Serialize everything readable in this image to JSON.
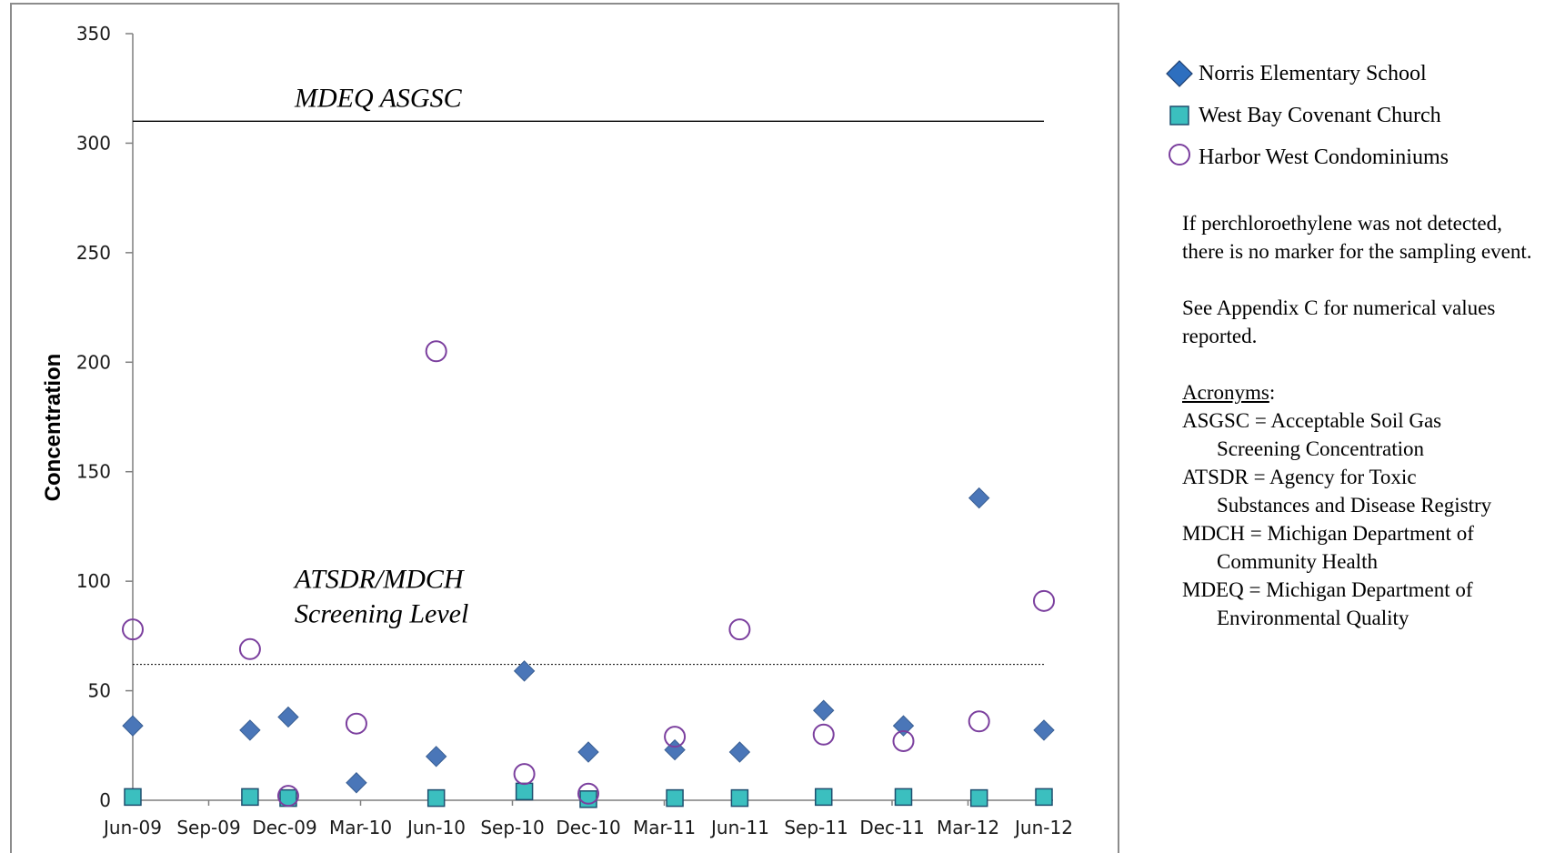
{
  "chart_data": {
    "type": "scatter",
    "ylabel": "Concentration",
    "xlabel": "",
    "ylim": [
      0,
      350
    ],
    "yticks": [
      0,
      50,
      100,
      150,
      200,
      250,
      300,
      350
    ],
    "xticks": [
      "Jun-09",
      "Sep-09",
      "Dec-09",
      "Mar-10",
      "Jun-10",
      "Sep-10",
      "Dec-10",
      "Mar-11",
      "Jun-11",
      "Sep-11",
      "Dec-11",
      "Mar-12",
      "Jun-12"
    ],
    "xlim": [
      "2009-06-01",
      "2012-06-01"
    ],
    "reference_lines": [
      {
        "label": "MDEQ ASGSC",
        "value": 310,
        "style": "solid"
      },
      {
        "label_lines": [
          "ATSDR/MDCH",
          "Screening Level"
        ],
        "value": 62,
        "style": "dotted"
      }
    ],
    "series": [
      {
        "name": "Norris Elementary School",
        "marker": "diamond",
        "color": "#4a76b8",
        "points": [
          {
            "x": "2009-06-01",
            "y": 34
          },
          {
            "x": "2009-10-20",
            "y": 32
          },
          {
            "x": "2009-12-05",
            "y": 38
          },
          {
            "x": "2010-02-25",
            "y": 8
          },
          {
            "x": "2010-06-01",
            "y": 20
          },
          {
            "x": "2010-09-15",
            "y": 59
          },
          {
            "x": "2010-12-01",
            "y": 22
          },
          {
            "x": "2011-03-15",
            "y": 23
          },
          {
            "x": "2011-06-01",
            "y": 22
          },
          {
            "x": "2011-09-10",
            "y": 41
          },
          {
            "x": "2011-12-15",
            "y": 34
          },
          {
            "x": "2012-03-15",
            "y": 138
          },
          {
            "x": "2012-06-01",
            "y": 32
          }
        ]
      },
      {
        "name": "West Bay Covenant Church",
        "marker": "square",
        "color": "#3bbfbf",
        "points": [
          {
            "x": "2009-06-01",
            "y": 1.5
          },
          {
            "x": "2009-10-20",
            "y": 1.5
          },
          {
            "x": "2009-12-05",
            "y": 1
          },
          {
            "x": "2010-06-01",
            "y": 1
          },
          {
            "x": "2010-09-15",
            "y": 4
          },
          {
            "x": "2010-12-01",
            "y": 0.5
          },
          {
            "x": "2011-03-15",
            "y": 1
          },
          {
            "x": "2011-06-01",
            "y": 1
          },
          {
            "x": "2011-09-10",
            "y": 1.5
          },
          {
            "x": "2011-12-15",
            "y": 1.5
          },
          {
            "x": "2012-03-15",
            "y": 1
          },
          {
            "x": "2012-06-01",
            "y": 1.5
          }
        ]
      },
      {
        "name": "Harbor West Condominiums",
        "marker": "circle-open",
        "color": "#7b3f9e",
        "points": [
          {
            "x": "2009-06-01",
            "y": 78
          },
          {
            "x": "2009-10-20",
            "y": 69
          },
          {
            "x": "2009-12-05",
            "y": 2
          },
          {
            "x": "2010-02-25",
            "y": 35
          },
          {
            "x": "2010-06-01",
            "y": 205
          },
          {
            "x": "2010-09-15",
            "y": 12
          },
          {
            "x": "2010-12-01",
            "y": 3
          },
          {
            "x": "2011-03-15",
            "y": 29
          },
          {
            "x": "2011-06-01",
            "y": 78
          },
          {
            "x": "2011-09-10",
            "y": 30
          },
          {
            "x": "2011-12-15",
            "y": 27
          },
          {
            "x": "2012-03-15",
            "y": 36
          },
          {
            "x": "2012-06-01",
            "y": 91
          }
        ]
      }
    ]
  },
  "notes": {
    "not_detected": "If perchloroethylene was not detected, there is no marker for the sampling event.",
    "appendix": "See Appendix C for numerical values reported.",
    "acronyms_title": "Acronyms",
    "acronyms": [
      {
        "first": "ASGSC = Acceptable Soil Gas",
        "cont": "Screening Concentration"
      },
      {
        "first": "ATSDR = Agency for Toxic",
        "cont": "Substances and Disease Registry"
      },
      {
        "first": "MDCH = Michigan Department of",
        "cont": "Community Health"
      },
      {
        "first": "MDEQ = Michigan Department of",
        "cont": "Environmental Quality"
      }
    ]
  }
}
